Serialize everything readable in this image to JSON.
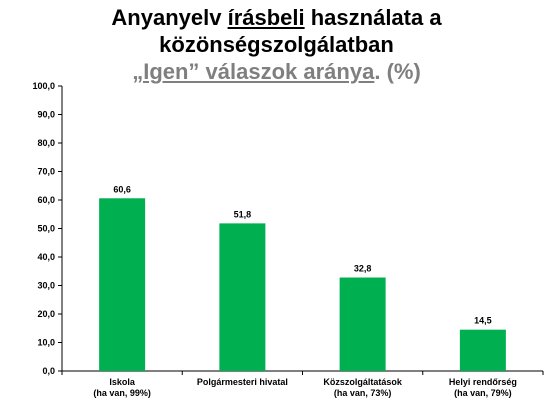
{
  "title": {
    "line1_a": "Anyanyelv ",
    "line1_u": "írásbeli",
    "line1_b": " használata a",
    "line2": "közönségszolgálatban",
    "sub_u1": "„Igen” válaszok aránya",
    "sub_dot": ".",
    "sub_rest": " (%)"
  },
  "colors": {
    "bar": "#00b050",
    "axis": "#000000",
    "subtitle": "#7f7f7f"
  },
  "chart_data": {
    "type": "bar",
    "categories": [
      "Iskola",
      "Polgármesteri hivatal",
      "Közszolgáltatások",
      "Helyi rendőrség"
    ],
    "category_sublabels": [
      "(ha van, 99%)",
      "",
      "(ha van, 73%)",
      "(ha van, 79%)"
    ],
    "values": [
      60.6,
      51.8,
      32.8,
      14.5
    ],
    "value_labels": [
      "60,6",
      "51,8",
      "32,8",
      "14,5"
    ],
    "ylim": [
      0,
      100
    ],
    "yticks": [
      0,
      10,
      20,
      30,
      40,
      50,
      60,
      70,
      80,
      90,
      100
    ],
    "ytick_labels": [
      "0,0",
      "10,0",
      "20,0",
      "30,0",
      "40,0",
      "50,0",
      "60,0",
      "70,0",
      "80,0",
      "90,0",
      "100,0"
    ],
    "grid": false,
    "legend": "none"
  }
}
